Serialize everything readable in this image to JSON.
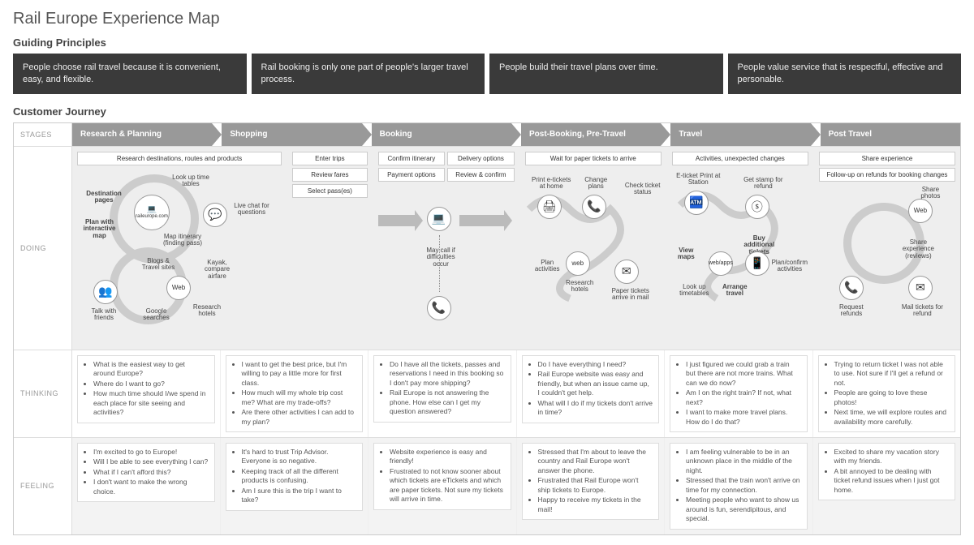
{
  "title": "Rail Europe Experience Map",
  "sections": {
    "principles_header": "Guiding Principles",
    "journey_header": "Customer Journey"
  },
  "principles": [
    "People choose rail travel because it is convenient, easy, and flexible.",
    "Rail booking is only one part of people's larger travel process.",
    "People build their travel plans over time.",
    "People value service that is respectful, effective and personable."
  ],
  "row_labels": {
    "stages": "STAGES",
    "doing": "DOING",
    "thinking": "THINKING",
    "feeling": "FEELING"
  },
  "stages": [
    "Research & Planning",
    "Shopping",
    "Booking",
    "Post-Booking, Pre-Travel",
    "Travel",
    "Post Travel"
  ],
  "doing": {
    "research": {
      "top_boxes": [
        "Research destinations, routes and products"
      ],
      "nodes": {
        "dest_pages": "Destination pages",
        "plan_map": "Plan with interactive map",
        "site": "raileurope.com",
        "lookup": "Look up time tables",
        "live_chat": "Live chat for questions",
        "map_itin": "Map itinerary (finding pass)",
        "talk_friends": "Talk with friends",
        "blogs": "Blogs & Travel sites",
        "google": "Google searches",
        "kayak": "Kayak, compare airfare",
        "web": "Web",
        "research_hotels": "Research hotels"
      }
    },
    "shopping": {
      "top_boxes": [
        "Enter trips",
        "Review fares",
        "Select pass(es)"
      ]
    },
    "booking": {
      "top_boxes": [
        "Confirm itinerary",
        "Delivery options",
        "Payment options",
        "Review & confirm"
      ],
      "may_call": "May call if difficulties occur"
    },
    "post_booking": {
      "top_boxes": [
        "Wait for paper tickets to arrive"
      ],
      "nodes": {
        "print": "Print e-tickets at home",
        "change": "Change plans",
        "check": "Check ticket status",
        "plan_act": "Plan activities",
        "research_hotels": "Research hotels",
        "paper": "Paper tickets arrive in mail"
      }
    },
    "travel": {
      "top_boxes": [
        "Activities, unexpected changes"
      ],
      "nodes": {
        "eticket": "E-ticket Print at Station",
        "stamp": "Get stamp for refund",
        "view_maps": "View maps",
        "buy_add": "Buy additional tickets",
        "lookup": "Look up timetables",
        "arrange": "Arrange travel",
        "webapps": "web/apps",
        "plan_confirm": "Plan/confirm activities"
      }
    },
    "post_travel": {
      "top_boxes": [
        "Share experience",
        "Follow-up on refunds for booking changes"
      ],
      "nodes": {
        "share_photos": "Share photos",
        "share_exp": "Share experience (reviews)",
        "web": "Web",
        "request": "Request refunds",
        "mail": "Mail tickets for refund"
      }
    }
  },
  "thinking": [
    [
      "What is the easiest way to get around Europe?",
      "Where do I want to go?",
      "How much time should I/we spend in each place for site seeing and activities?"
    ],
    [
      "I want to get the best price, but I'm willing to pay a little more for first class.",
      "How much will my whole trip cost me? What are my trade-offs?",
      "Are there other activities I can add to my plan?"
    ],
    [
      "Do I have all the tickets, passes and reservations I need in this booking so I don't pay more shipping?",
      "Rail Europe is not answering the phone. How else can I get my question answered?"
    ],
    [
      "Do I have everything I need?",
      "Rail Europe website was easy and friendly, but when an issue came up, I couldn't get help.",
      "What will I do if my tickets don't arrive in time?"
    ],
    [
      "I just figured we could grab a train but there are not more trains. What can we do now?",
      "Am I on the right train? If not, what next?",
      "I want to make more travel plans. How do I do that?"
    ],
    [
      "Trying to return ticket I was not able to use. Not sure if I'll get a refund or not.",
      "People are going to love these photos!",
      "Next time, we will explore routes and availability more carefully."
    ]
  ],
  "feeling": [
    [
      "I'm excited to go to Europe!",
      "Will I be able to see everything I can?",
      "What if I can't afford this?",
      "I don't want to make the wrong choice."
    ],
    [
      "It's hard to trust Trip Advisor. Everyone is so negative.",
      "Keeping track of all the different products is confusing.",
      "Am I sure this is the trip I want to take?"
    ],
    [
      "Website experience is easy and friendly!",
      "Frustrated to not know sooner about which tickets are eTickets and which are paper tickets. Not sure my tickets will arrive in time."
    ],
    [
      "Stressed that I'm about to leave the country and Rail Europe won't answer the phone.",
      "Frustrated that Rail Europe won't ship tickets to Europe.",
      "Happy to receive my tickets in the mail!"
    ],
    [
      "I am feeling vulnerable to be in an unknown place in the middle of the night.",
      "Stressed that the train won't arrive on time for my connection.",
      "Meeting people who want to show us around is fun, serendipitous, and special."
    ],
    [
      "Excited to share my vacation story with my friends.",
      "A bit annoyed to be dealing with ticket refund issues when I just got home."
    ]
  ],
  "style": {
    "principle_bg": "#3a3a3a",
    "principle_fg": "#eeeeee",
    "stage_bg": "#999999",
    "stage_fg": "#ffffff",
    "doing_bg": "#eeeeee",
    "border": "#cccccc",
    "arrow": "#bbbbbb"
  }
}
